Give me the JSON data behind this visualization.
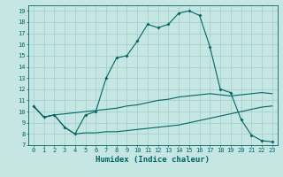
{
  "xlabel": "Humidex (Indice chaleur)",
  "ylabel": "",
  "background_color": "#c5e6e2",
  "grid_color": "#aad4cf",
  "line_color": "#006666",
  "xlim": [
    -0.5,
    23.5
  ],
  "ylim": [
    7,
    19.5
  ],
  "xticks": [
    0,
    1,
    2,
    3,
    4,
    5,
    6,
    7,
    8,
    9,
    10,
    11,
    12,
    13,
    14,
    15,
    16,
    17,
    18,
    19,
    20,
    21,
    22,
    23
  ],
  "yticks": [
    7,
    8,
    9,
    10,
    11,
    12,
    13,
    14,
    15,
    16,
    17,
    18,
    19
  ],
  "line1_x": [
    0,
    1,
    2,
    3,
    4,
    5,
    6,
    7,
    8,
    9,
    10,
    11,
    12,
    13,
    14,
    15,
    16,
    17,
    18,
    19,
    20,
    21,
    22,
    23
  ],
  "line1_y": [
    10.5,
    9.5,
    9.7,
    8.6,
    8.0,
    9.7,
    10.0,
    13.0,
    14.8,
    15.0,
    16.3,
    17.8,
    17.5,
    17.8,
    18.8,
    19.0,
    18.6,
    15.8,
    12.0,
    11.7,
    9.3,
    7.9,
    7.4,
    7.3
  ],
  "line2_x": [
    0,
    1,
    2,
    3,
    4,
    5,
    6,
    7,
    8,
    9,
    10,
    11,
    12,
    13,
    14,
    15,
    16,
    17,
    18,
    19,
    20,
    21,
    22,
    23
  ],
  "line2_y": [
    10.5,
    9.5,
    9.7,
    8.6,
    8.0,
    8.1,
    8.1,
    8.2,
    8.2,
    8.3,
    8.4,
    8.5,
    8.6,
    8.7,
    8.8,
    9.0,
    9.2,
    9.4,
    9.6,
    9.8,
    10.0,
    10.2,
    10.4,
    10.5
  ],
  "line3_x": [
    0,
    1,
    2,
    3,
    4,
    5,
    6,
    7,
    8,
    9,
    10,
    11,
    12,
    13,
    14,
    15,
    16,
    17,
    18,
    19,
    20,
    21,
    22,
    23
  ],
  "line3_y": [
    10.5,
    9.5,
    9.7,
    9.8,
    9.9,
    10.0,
    10.1,
    10.2,
    10.3,
    10.5,
    10.6,
    10.8,
    11.0,
    11.1,
    11.3,
    11.4,
    11.5,
    11.6,
    11.5,
    11.4,
    11.5,
    11.6,
    11.7,
    11.6
  ]
}
